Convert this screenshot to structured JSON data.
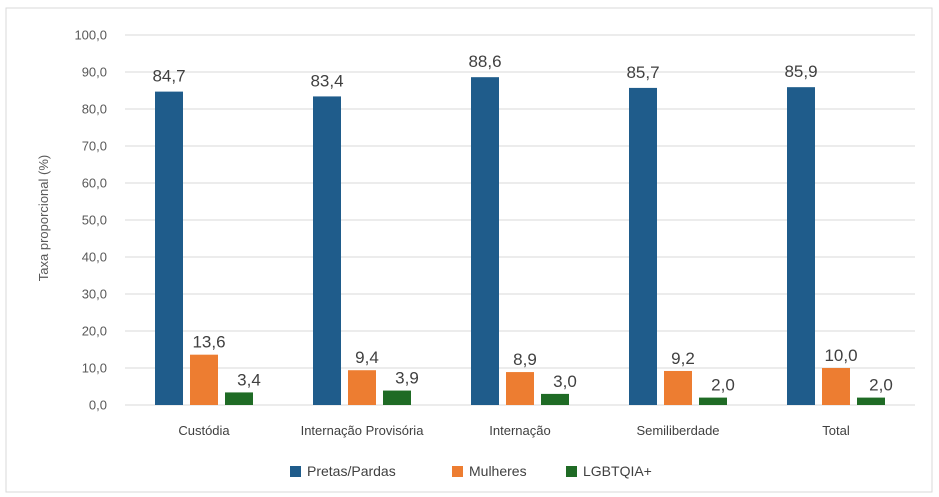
{
  "chart_data": {
    "type": "bar",
    "title": "",
    "xlabel": "",
    "ylabel": "Taxa proporcional (%)",
    "ylim": [
      0,
      100
    ],
    "yticks": [
      "0,0",
      "10,0",
      "20,0",
      "30,0",
      "40,0",
      "50,0",
      "60,0",
      "70,0",
      "80,0",
      "90,0",
      "100,0"
    ],
    "grid": true,
    "legend_position": "bottom",
    "categories": [
      "Custódia",
      "Internação Provisória",
      "Internação",
      "Semiliberdade",
      "Total"
    ],
    "series": [
      {
        "name": "Pretas/Pardas",
        "color": "#1f5c8b",
        "values": [
          84.7,
          83.4,
          88.6,
          85.7,
          85.9
        ],
        "labels": [
          "84,7",
          "83,4",
          "88,6",
          "85,7",
          "85,9"
        ]
      },
      {
        "name": "Mulheres",
        "color": "#ed7d31",
        "values": [
          13.6,
          9.4,
          8.9,
          9.2,
          10.0
        ],
        "labels": [
          "13,6",
          "9,4",
          "8,9",
          "9,2",
          "10,0"
        ]
      },
      {
        "name": "LGBTQIA+",
        "color": "#1f6b25",
        "values": [
          3.4,
          3.9,
          3.0,
          2.0,
          2.0
        ],
        "labels": [
          "3,4",
          "3,9",
          "3,0",
          "2,0",
          "2,0"
        ]
      }
    ]
  }
}
